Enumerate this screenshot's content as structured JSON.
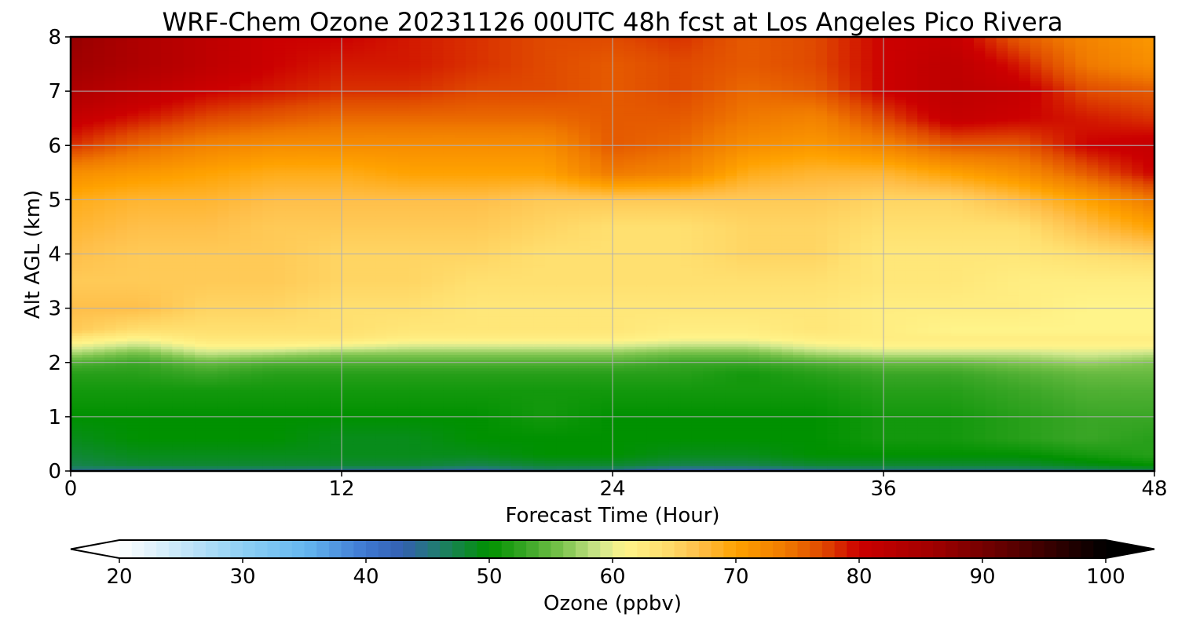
{
  "chart_data": {
    "type": "heatmap",
    "title": "WRF-Chem Ozone  20231126 00UTC 48h fcst at Los Angeles Pico Rivera",
    "xlabel": "Forecast Time (Hour)",
    "ylabel": "Alt AGL (km)",
    "xlim": [
      0,
      48
    ],
    "ylim": [
      0,
      8
    ],
    "x_ticks": [
      "0",
      "12",
      "24",
      "36",
      "48"
    ],
    "y_ticks": [
      "0",
      "1",
      "2",
      "3",
      "4",
      "5",
      "6",
      "7",
      "8"
    ],
    "grid": true,
    "x_hours": [
      0,
      3,
      6,
      9,
      12,
      15,
      18,
      21,
      24,
      27,
      30,
      33,
      36,
      39,
      42,
      45,
      48
    ],
    "y_km": [
      0,
      0.1,
      0.3,
      0.6,
      1.0,
      1.5,
      1.8,
      2.0,
      2.15,
      2.3,
      2.45,
      2.6,
      3.0,
      3.5,
      4.0,
      4.5,
      5.0,
      5.5,
      6.0,
      6.5,
      7.0,
      7.5,
      8.0
    ],
    "ozone_ppbv": [
      [
        44,
        43,
        44,
        44,
        43,
        43,
        42,
        45,
        44,
        40,
        41,
        43,
        44,
        44,
        44,
        45,
        46
      ],
      [
        47,
        48,
        48,
        48,
        48,
        48,
        47,
        48,
        48,
        47,
        47,
        48,
        48,
        48,
        48,
        49,
        50
      ],
      [
        48,
        49,
        49,
        49,
        49,
        49,
        49,
        50,
        50,
        49,
        49,
        50,
        50,
        50,
        50,
        51,
        52
      ],
      [
        49,
        50,
        50,
        50,
        49,
        49,
        50,
        50,
        50,
        50,
        50,
        50,
        51,
        51,
        52,
        53,
        52
      ],
      [
        50,
        50,
        50,
        50,
        50,
        50,
        50,
        51,
        50,
        50,
        50,
        50,
        51,
        51,
        52,
        53,
        53
      ],
      [
        51,
        51,
        51,
        51,
        51,
        51,
        51,
        51,
        51,
        51,
        51,
        51,
        52,
        52,
        53,
        54,
        54
      ],
      [
        52,
        52,
        53,
        52,
        52,
        52,
        52,
        52,
        52,
        52,
        51,
        52,
        53,
        53,
        54,
        55,
        55
      ],
      [
        54,
        53,
        55,
        54,
        54,
        54,
        54,
        54,
        54,
        53,
        53,
        54,
        55,
        55,
        56,
        57,
        56
      ],
      [
        57,
        55,
        58,
        57,
        56,
        56,
        56,
        56,
        56,
        55,
        55,
        57,
        58,
        58,
        58,
        59,
        58
      ],
      [
        60,
        58,
        61,
        61,
        60,
        59,
        59,
        59,
        59,
        58,
        58,
        60,
        61,
        61,
        61,
        61,
        61
      ],
      [
        63,
        61,
        63,
        63,
        63,
        62,
        62,
        62,
        62,
        61,
        61,
        62,
        62,
        62,
        62,
        62,
        62
      ],
      [
        66,
        64,
        64,
        64,
        64,
        63,
        63,
        63,
        63,
        62,
        62,
        63,
        62,
        61,
        61,
        61,
        61
      ],
      [
        67,
        67,
        65,
        65,
        64,
        64,
        63,
        63,
        63,
        63,
        63,
        63,
        62,
        62,
        62,
        61,
        61
      ],
      [
        66,
        66,
        66,
        66,
        65,
        65,
        64,
        64,
        64,
        64,
        64,
        64,
        63,
        63,
        62,
        62,
        62
      ],
      [
        67,
        66,
        66,
        66,
        65,
        65,
        65,
        64,
        64,
        64,
        65,
        65,
        63,
        63,
        63,
        64,
        65
      ],
      [
        68,
        67,
        67,
        66,
        66,
        66,
        66,
        65,
        64,
        64,
        65,
        65,
        64,
        64,
        64,
        67,
        70
      ],
      [
        69,
        68,
        68,
        67,
        67,
        67,
        67,
        66,
        66,
        66,
        66,
        66,
        65,
        65,
        67,
        70,
        74
      ],
      [
        72,
        71,
        70,
        69,
        69,
        70,
        70,
        70,
        74,
        73,
        69,
        68,
        68,
        70,
        72,
        76,
        80
      ],
      [
        78,
        75,
        73,
        72,
        72,
        72,
        72,
        72,
        76,
        75,
        72,
        71,
        73,
        76,
        76,
        80,
        81
      ],
      [
        81,
        79,
        77,
        76,
        75,
        75,
        75,
        75,
        76,
        76,
        74,
        73,
        77,
        81,
        80,
        79,
        78
      ],
      [
        84,
        82,
        80,
        79,
        78,
        78,
        77,
        77,
        76,
        77,
        75,
        76,
        80,
        82,
        81,
        77,
        76
      ],
      [
        86,
        84,
        82,
        80,
        79,
        79,
        78,
        77,
        76,
        77,
        76,
        77,
        80,
        82,
        79,
        74,
        72
      ],
      [
        87,
        84,
        82,
        80,
        80,
        79,
        78,
        77,
        77,
        78,
        76,
        77,
        80,
        81,
        76,
        73,
        71
      ]
    ],
    "colorbar": {
      "label": "Ozone  (ppbv)",
      "min": 20,
      "max": 100,
      "ticks": [
        "20",
        "30",
        "40",
        "50",
        "60",
        "70",
        "80",
        "90",
        "100"
      ],
      "extend": "both",
      "color_stops": [
        {
          "value": 20,
          "color": "#ffffff"
        },
        {
          "value": 30,
          "color": "#8ed0f4"
        },
        {
          "value": 35,
          "color": "#66b8f0"
        },
        {
          "value": 40,
          "color": "#3e78d2"
        },
        {
          "value": 43,
          "color": "#3360b0"
        },
        {
          "value": 46,
          "color": "#1f7e6a"
        },
        {
          "value": 50,
          "color": "#009100"
        },
        {
          "value": 53,
          "color": "#3aa626"
        },
        {
          "value": 56,
          "color": "#7dc44e"
        },
        {
          "value": 59,
          "color": "#d2e88e"
        },
        {
          "value": 61,
          "color": "#fff48a"
        },
        {
          "value": 64,
          "color": "#ffe070"
        },
        {
          "value": 67,
          "color": "#ffbf4a"
        },
        {
          "value": 70,
          "color": "#ffa200"
        },
        {
          "value": 74,
          "color": "#f07a00"
        },
        {
          "value": 77,
          "color": "#e04a00"
        },
        {
          "value": 80,
          "color": "#cc0000"
        },
        {
          "value": 86,
          "color": "#a00000"
        },
        {
          "value": 92,
          "color": "#600000"
        },
        {
          "value": 100,
          "color": "#000000"
        }
      ]
    }
  }
}
